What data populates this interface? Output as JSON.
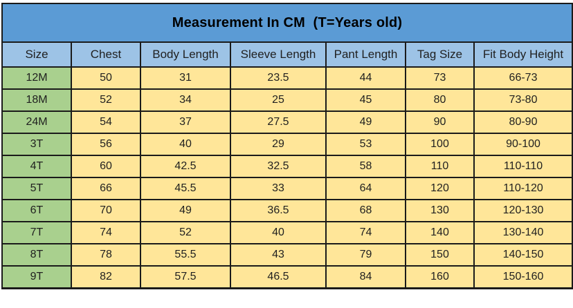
{
  "table": {
    "title": "Measurement In CM  (T=Years old)",
    "columns": [
      "Size",
      "Chest",
      "Body Length",
      "Sleeve Length",
      "Pant Length",
      "Tag Size",
      "Fit Body Height"
    ],
    "rows": [
      {
        "size": "12M",
        "values": [
          "50",
          "31",
          "23.5",
          "44",
          "73",
          "66-73"
        ]
      },
      {
        "size": "18M",
        "values": [
          "52",
          "34",
          "25",
          "45",
          "80",
          "73-80"
        ]
      },
      {
        "size": "24M",
        "values": [
          "54",
          "37",
          "27.5",
          "49",
          "90",
          "80-90"
        ]
      },
      {
        "size": "3T",
        "values": [
          "56",
          "40",
          "29",
          "53",
          "100",
          "90-100"
        ]
      },
      {
        "size": "4T",
        "values": [
          "60",
          "42.5",
          "32.5",
          "58",
          "110",
          "110-110"
        ]
      },
      {
        "size": "5T",
        "values": [
          "66",
          "45.5",
          "33",
          "64",
          "120",
          "110-120"
        ]
      },
      {
        "size": "6T",
        "values": [
          "70",
          "49",
          "36.5",
          "68",
          "130",
          "120-130"
        ]
      },
      {
        "size": "7T",
        "values": [
          "74",
          "52",
          "40",
          "74",
          "140",
          "130-140"
        ]
      },
      {
        "size": "8T",
        "values": [
          "78",
          "55.5",
          "43",
          "79",
          "150",
          "140-150"
        ]
      },
      {
        "size": "9T",
        "values": [
          "82",
          "57.5",
          "46.5",
          "84",
          "160",
          "150-160"
        ]
      }
    ],
    "colors": {
      "title_bar": "#5b9bd5",
      "header_row": "#9dc3e6",
      "size_column": "#a9d08e",
      "data_cell": "#ffe699",
      "border": "#1a1a1a",
      "text": "#1f1f1f"
    }
  }
}
